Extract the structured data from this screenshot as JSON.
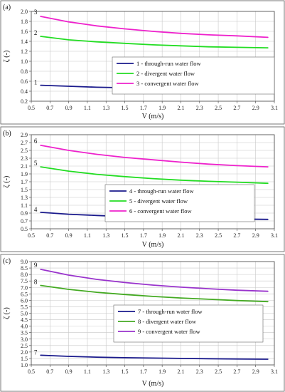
{
  "chart_data": [
    {
      "type": "line",
      "panel_label": "(a)",
      "xlabel": "V (m/s)",
      "ylabel": "ζ (-)",
      "xlim": [
        0.5,
        3.1
      ],
      "ylim": [
        0.2,
        2.0
      ],
      "xticks": [
        "0.5",
        "0.7",
        "0.9",
        "1.1",
        "1.3",
        "1.5",
        "1.7",
        "1.9",
        "2.1",
        "2.3",
        "2.5",
        "2.7",
        "2.9",
        "3.1"
      ],
      "yticks": [
        "0.2",
        "0.4",
        "0.6",
        "0.8",
        "1.0",
        "1.2",
        "1.4",
        "1.6",
        "1.8",
        "2.0"
      ],
      "grid": true,
      "legend_position": "right",
      "series": [
        {
          "name": "1 - through-run water flow",
          "label": "1",
          "color": "#1a1a8c",
          "x": [
            0.6,
            0.9,
            1.2,
            1.5,
            1.8,
            2.1,
            2.4,
            2.7,
            3.03
          ],
          "y": [
            0.52,
            0.5,
            0.48,
            0.47,
            0.46,
            0.45,
            0.44,
            0.43,
            0.42
          ]
        },
        {
          "name": "2 - divergent water flow",
          "label": "2",
          "color": "#22dd22",
          "x": [
            0.6,
            0.9,
            1.2,
            1.5,
            1.8,
            2.1,
            2.4,
            2.7,
            3.03
          ],
          "y": [
            1.5,
            1.43,
            1.39,
            1.36,
            1.33,
            1.31,
            1.29,
            1.28,
            1.27
          ]
        },
        {
          "name": "3 - convergent water flow",
          "label": "3",
          "color": "#ee22cc",
          "x": [
            0.6,
            0.9,
            1.2,
            1.5,
            1.8,
            2.1,
            2.4,
            2.7,
            3.03
          ],
          "y": [
            1.9,
            1.79,
            1.71,
            1.65,
            1.6,
            1.56,
            1.53,
            1.51,
            1.48
          ]
        }
      ]
    },
    {
      "type": "line",
      "panel_label": "(b)",
      "xlabel": "V (m/s)",
      "ylabel": "ζ (-)",
      "xlim": [
        0.5,
        3.1
      ],
      "ylim": [
        0.5,
        2.9
      ],
      "xticks": [
        "0.5",
        "0.7",
        "0.9",
        "1.1",
        "1.3",
        "1.5",
        "1.7",
        "1.9",
        "2.1",
        "2.3",
        "2.5",
        "2.7",
        "2.9",
        "3.1"
      ],
      "yticks": [
        "0.5",
        "0.7",
        "0.9",
        "1.1",
        "1.3",
        "1.5",
        "1.7",
        "1.9",
        "2.1",
        "2.3",
        "2.5",
        "2.7",
        "2.9"
      ],
      "grid": true,
      "legend_position": "right",
      "series": [
        {
          "name": "4 - through-run water flow",
          "label": "4",
          "color": "#1a1a8c",
          "x": [
            0.6,
            0.9,
            1.2,
            1.5,
            1.8,
            2.1,
            2.4,
            2.7,
            3.03
          ],
          "y": [
            0.92,
            0.87,
            0.84,
            0.81,
            0.79,
            0.77,
            0.76,
            0.75,
            0.74
          ]
        },
        {
          "name": "5 - divergent water flow",
          "label": "5",
          "color": "#22dd22",
          "x": [
            0.6,
            0.9,
            1.2,
            1.5,
            1.8,
            2.1,
            2.4,
            2.7,
            3.03
          ],
          "y": [
            2.08,
            1.97,
            1.89,
            1.83,
            1.78,
            1.74,
            1.71,
            1.69,
            1.66
          ]
        },
        {
          "name": "6 - convergent water flow",
          "label": "6",
          "color": "#ee22cc",
          "x": [
            0.6,
            0.9,
            1.2,
            1.5,
            1.8,
            2.1,
            2.4,
            2.7,
            3.03
          ],
          "y": [
            2.63,
            2.5,
            2.4,
            2.32,
            2.26,
            2.2,
            2.15,
            2.11,
            2.08
          ]
        }
      ]
    },
    {
      "type": "line",
      "panel_label": "(c)",
      "xlabel": "V (m/s)",
      "ylabel": "ζ (-)",
      "xlim": [
        0.5,
        3.1
      ],
      "ylim": [
        1.0,
        9.0
      ],
      "xticks": [
        "0.5",
        "0.7",
        "0.9",
        "1.1",
        "1.3",
        "1.5",
        "1.7",
        "1.9",
        "2.1",
        "2.3",
        "2.5",
        "2.7",
        "2.9",
        "3.1"
      ],
      "yticks": [
        "1.0",
        "1.5",
        "2.0",
        "2.5",
        "3.0",
        "3.5",
        "4.0",
        "4.5",
        "5.0",
        "5.5",
        "6.0",
        "6.5",
        "7.0",
        "7.5",
        "8.0",
        "8.5",
        "9.0"
      ],
      "grid": true,
      "legend_position": "right",
      "series": [
        {
          "name": "7 - through-run water flow",
          "label": "7",
          "color": "#1a1a8c",
          "x": [
            0.6,
            0.9,
            1.2,
            1.5,
            1.8,
            2.1,
            2.4,
            2.7,
            3.03
          ],
          "y": [
            1.75,
            1.66,
            1.6,
            1.56,
            1.53,
            1.5,
            1.48,
            1.46,
            1.44
          ]
        },
        {
          "name": "8 - divergent water flow",
          "label": "8",
          "color": "#44aa22",
          "x": [
            0.6,
            0.9,
            1.2,
            1.5,
            1.8,
            2.1,
            2.4,
            2.7,
            3.03
          ],
          "y": [
            7.15,
            6.85,
            6.62,
            6.45,
            6.3,
            6.18,
            6.08,
            5.98,
            5.9
          ]
        },
        {
          "name": "9 - convergent water flow",
          "label": "9",
          "color": "#9933cc",
          "x": [
            0.6,
            0.9,
            1.2,
            1.5,
            1.8,
            2.1,
            2.4,
            2.7,
            3.03
          ],
          "y": [
            8.4,
            7.95,
            7.62,
            7.38,
            7.18,
            7.02,
            6.9,
            6.78,
            6.7
          ]
        }
      ]
    }
  ]
}
